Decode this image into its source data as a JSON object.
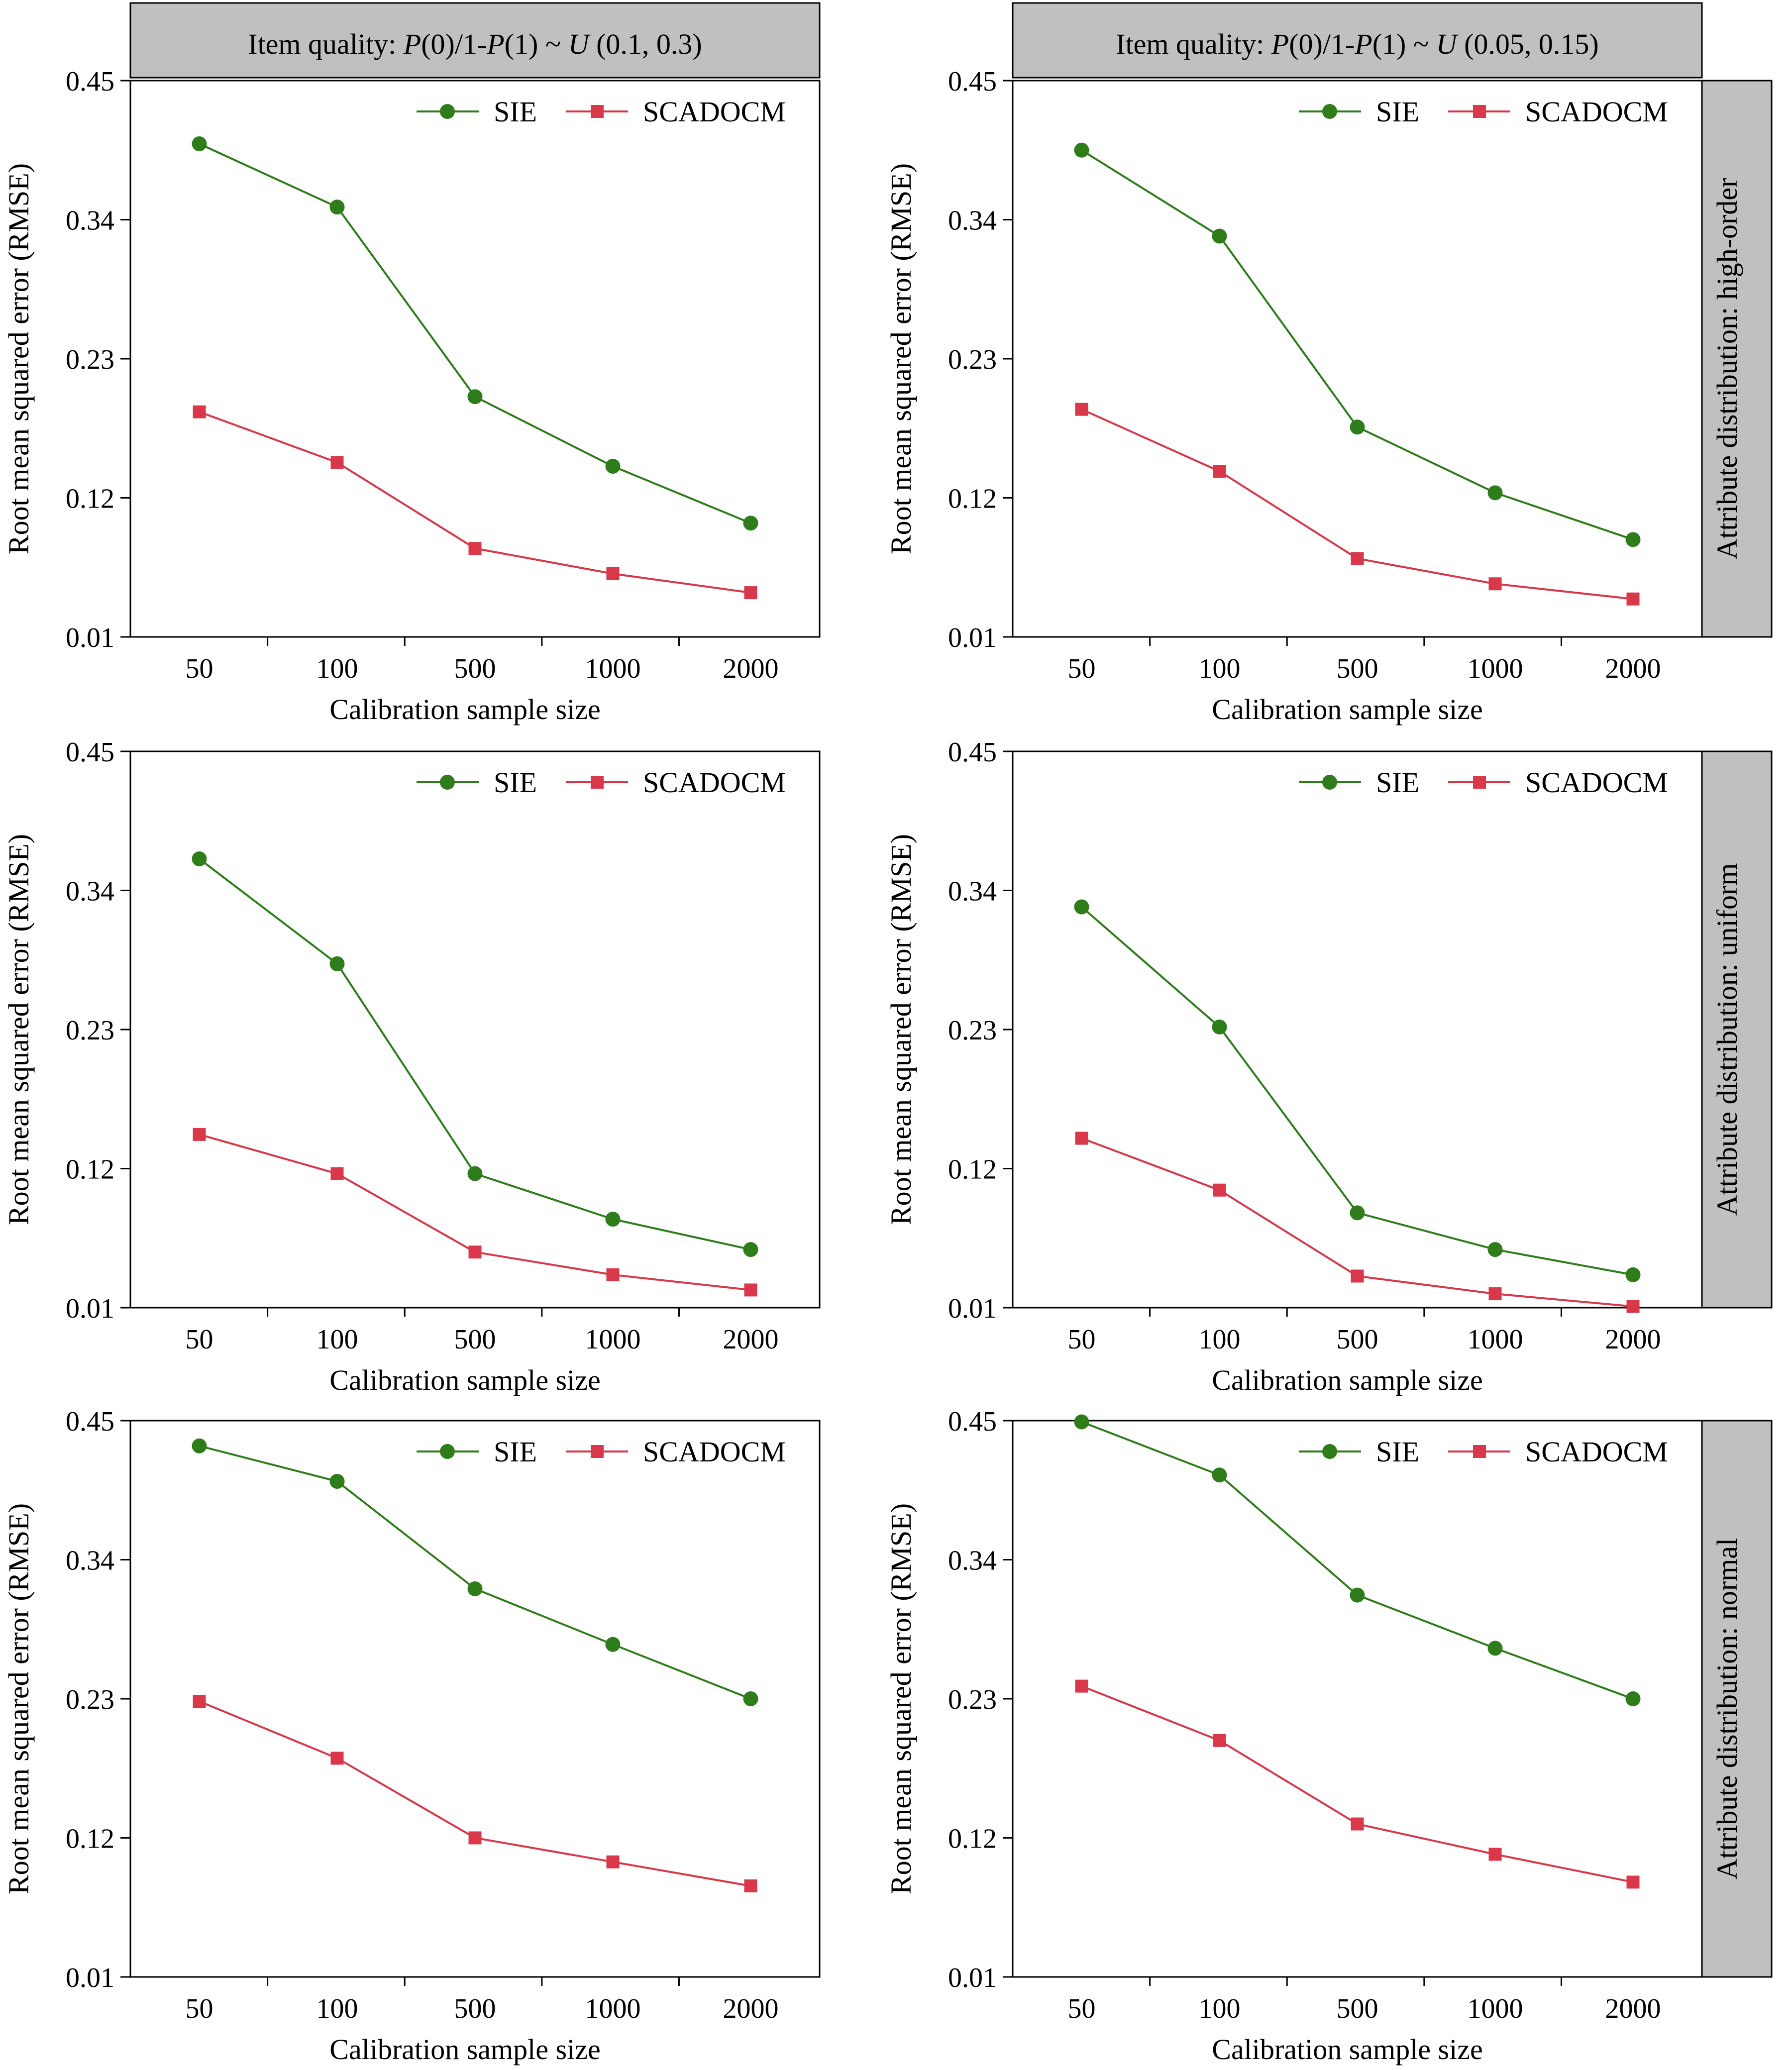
{
  "colors": {
    "sie": "#2E7D1A",
    "scadocm": "#D8384A",
    "strip": "#C0C0C0",
    "axis": "#000000"
  },
  "legend": {
    "sie": "SIE",
    "scadocm": "SCADOCM"
  },
  "axes": {
    "xlabel": "Calibration sample size",
    "ylabel": "Root mean squared error (RMSE)",
    "y_ticks": [
      "0.01",
      "0.12",
      "0.23",
      "0.34",
      "0.45"
    ],
    "x_ticks": [
      "50",
      "100",
      "500",
      "1000",
      "2000"
    ]
  },
  "column_strips": {
    "left": {
      "prefix": "Item quality: ",
      "p0": "P",
      "a": "(0)/1-",
      "p1": "P",
      "b": "(1) ~ ",
      "u": "U",
      "rest": " (0.1, 0.3)"
    },
    "right": {
      "prefix": "Item quality: ",
      "p0": "P",
      "a": "(0)/1-",
      "p1": "P",
      "b": "(1) ~ ",
      "u": "U",
      "rest": " (0.05, 0.15)"
    }
  },
  "row_strips": [
    "Attribute distribution: high-order",
    "Attribute distribution: uniform",
    "Attribute distribution: normal"
  ],
  "chart_data": [
    {
      "type": "line",
      "row": 0,
      "col": 0,
      "x": [
        "50",
        "100",
        "500",
        "1000",
        "2000"
      ],
      "ylim": [
        0.01,
        0.45
      ],
      "series": [
        {
          "name": "SIE",
          "values": [
            0.4,
            0.35,
            0.2,
            0.145,
            0.1
          ]
        },
        {
          "name": "SCADOCM",
          "values": [
            0.188,
            0.148,
            0.08,
            0.06,
            0.045
          ]
        }
      ]
    },
    {
      "type": "line",
      "row": 0,
      "col": 1,
      "x": [
        "50",
        "100",
        "500",
        "1000",
        "2000"
      ],
      "ylim": [
        0.01,
        0.45
      ],
      "series": [
        {
          "name": "SIE",
          "values": [
            0.395,
            0.327,
            0.176,
            0.124,
            0.087
          ]
        },
        {
          "name": "SCADOCM",
          "values": [
            0.19,
            0.141,
            0.072,
            0.052,
            0.04
          ]
        }
      ]
    },
    {
      "type": "line",
      "row": 1,
      "col": 0,
      "x": [
        "50",
        "100",
        "500",
        "1000",
        "2000"
      ],
      "ylim": [
        0.01,
        0.45
      ],
      "series": [
        {
          "name": "SIE",
          "values": [
            0.365,
            0.282,
            0.116,
            0.08,
            0.056
          ]
        },
        {
          "name": "SCADOCM",
          "values": [
            0.147,
            0.116,
            0.054,
            0.036,
            0.024
          ]
        }
      ]
    },
    {
      "type": "line",
      "row": 1,
      "col": 1,
      "x": [
        "50",
        "100",
        "500",
        "1000",
        "2000"
      ],
      "ylim": [
        0.01,
        0.45
      ],
      "series": [
        {
          "name": "SIE",
          "values": [
            0.327,
            0.232,
            0.085,
            0.056,
            0.036
          ]
        },
        {
          "name": "SCADOCM",
          "values": [
            0.144,
            0.103,
            0.035,
            0.021,
            0.011
          ]
        }
      ]
    },
    {
      "type": "line",
      "row": 2,
      "col": 0,
      "x": [
        "50",
        "100",
        "500",
        "1000",
        "2000"
      ],
      "ylim": [
        0.01,
        0.45
      ],
      "series": [
        {
          "name": "SIE",
          "values": [
            0.43,
            0.402,
            0.317,
            0.273,
            0.23
          ]
        },
        {
          "name": "SCADOCM",
          "values": [
            0.228,
            0.183,
            0.12,
            0.101,
            0.082
          ]
        }
      ]
    },
    {
      "type": "line",
      "row": 2,
      "col": 1,
      "x": [
        "50",
        "100",
        "500",
        "1000",
        "2000"
      ],
      "ylim": [
        0.01,
        0.45
      ],
      "series": [
        {
          "name": "SIE",
          "values": [
            0.449,
            0.407,
            0.312,
            0.27,
            0.23
          ]
        },
        {
          "name": "SCADOCM",
          "values": [
            0.24,
            0.197,
            0.131,
            0.107,
            0.085
          ]
        }
      ]
    }
  ]
}
